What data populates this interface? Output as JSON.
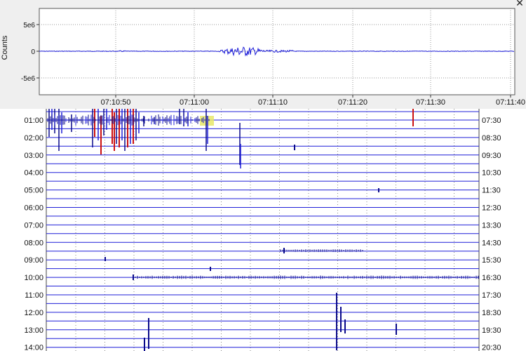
{
  "zoom": {
    "y_axis_label": "Counts",
    "y_ticks": [
      "5e6",
      "0",
      "-5e6"
    ],
    "x_ticks": [
      "07:10:50",
      "07:11:00",
      "07:11:10",
      "07:11:20",
      "07:11:30",
      "07:11:40"
    ],
    "trace_color": "#1f1fd8",
    "close_icon": "close-icon",
    "close_glyph": "✕"
  },
  "helicorder": {
    "left_labels": [
      "01:00",
      "02:00",
      "03:00",
      "04:00",
      "05:00",
      "06:00",
      "07:00",
      "08:00",
      "09:00",
      "10:00",
      "11:00",
      "12:00",
      "13:00",
      "14:00"
    ],
    "right_labels": [
      "07:30",
      "08:30",
      "09:30",
      "10:30",
      "11:30",
      "12:30",
      "13:30",
      "14:30",
      "15:30",
      "16:30",
      "17:30",
      "18:30",
      "19:30",
      "20:30"
    ],
    "trace_colors": [
      "#0a0a8a",
      "#1f1fd8",
      "#cc1111"
    ],
    "highlight_color": "#e8e86a"
  }
}
